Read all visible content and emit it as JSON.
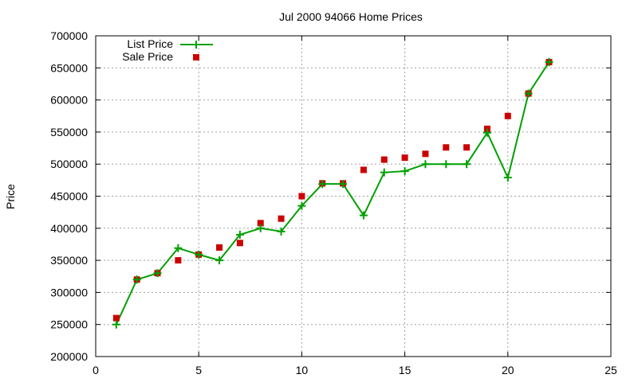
{
  "chart_data": {
    "type": "line",
    "title": "Jul 2000 94066 Home Prices",
    "xlabel": "",
    "ylabel": "Price",
    "xlim": [
      0,
      25
    ],
    "ylim": [
      200000,
      700000
    ],
    "x_ticks": [
      "0",
      "5",
      "10",
      "15",
      "20",
      "25"
    ],
    "y_ticks": [
      "200000",
      "250000",
      "300000",
      "350000",
      "400000",
      "450000",
      "500000",
      "550000",
      "600000",
      "650000",
      "700000"
    ],
    "grid": true,
    "legend_position": "top-left",
    "x": [
      1,
      2,
      3,
      4,
      5,
      6,
      7,
      8,
      9,
      10,
      11,
      12,
      13,
      14,
      15,
      16,
      17,
      18,
      19,
      20,
      21,
      22
    ],
    "series": [
      {
        "name": "List Price",
        "style": "linespoints",
        "color": "#00a000",
        "values": [
          250000,
          320000,
          330000,
          369000,
          359000,
          350000,
          390000,
          400000,
          395000,
          435000,
          469000,
          469000,
          420000,
          487000,
          489000,
          500000,
          500000,
          500000,
          549000,
          479000,
          610000,
          659000
        ]
      },
      {
        "name": "Sale Price",
        "style": "points",
        "color": "#cc0000",
        "values": [
          260000,
          320000,
          330000,
          350000,
          359000,
          370000,
          377000,
          408000,
          415000,
          450000,
          470000,
          470000,
          491000,
          507000,
          510000,
          516000,
          526000,
          526000,
          555000,
          575000,
          610000,
          659000
        ]
      }
    ]
  }
}
